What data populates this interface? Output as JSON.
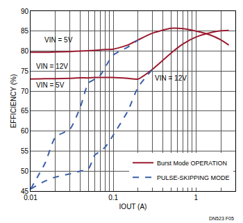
{
  "chart_data": {
    "type": "line",
    "x_label": "IOUT (A)",
    "y_label": "EFFICIENCY (%)",
    "log": "x",
    "grid": true,
    "legend": "lower right",
    "xlim": [
      0.01,
      3
    ],
    "xticks": [
      0.01,
      0.1,
      1
    ],
    "ylim": [
      45,
      90
    ],
    "yticks": [
      45,
      50,
      55,
      60,
      65,
      70,
      75,
      80,
      85,
      90
    ],
    "x": [
      0.01,
      0.015,
      0.02,
      0.03,
      0.04,
      0.05,
      0.06,
      0.07,
      0.08,
      0.1,
      0.15,
      0.2,
      0.3,
      0.5,
      0.7,
      1,
      1.5,
      2,
      2.5
    ],
    "series": [
      {
        "name": "Burst Mode OPERATION",
        "color": "#9b1b30",
        "line_style": "solid",
        "values": [
          79.7,
          79.7,
          79.8,
          79.9,
          80,
          80.1,
          80.2,
          80.3,
          80.4,
          80.5,
          81.5,
          82.8,
          84.5,
          85.7,
          85.6,
          85,
          84,
          82.8,
          81.5
        ]
      },
      {
        "name": "Burst Mode OPERATION",
        "color": "#9b1b30",
        "line_style": "solid",
        "values": [
          73,
          73.1,
          73.1,
          73.2,
          73.3,
          73.3,
          73.4,
          73.4,
          73.4,
          73.4,
          73.2,
          73,
          75.5,
          79.5,
          81.8,
          83.5,
          84.6,
          85.1,
          85.2
        ]
      },
      {
        "name": "PULSE-SKIPPING MODE",
        "color": "#3a5fa8",
        "line_style": "dash",
        "values": [
          45.5,
          52,
          58.5,
          60.5,
          66,
          72,
          73,
          74,
          76,
          79,
          81,
          82.8,
          null,
          null,
          null,
          null,
          null,
          null,
          null
        ]
      },
      {
        "name": "PULSE-SKIPPING MODE",
        "color": "#3a5fa8",
        "line_style": "dash",
        "values": [
          45.5,
          47.5,
          48.5,
          49.3,
          50,
          50.5,
          54,
          55,
          56,
          59,
          65,
          71,
          75.5,
          null,
          null,
          null,
          null,
          null,
          null
        ]
      }
    ],
    "annotations": [
      "VIN = 5V",
      "VIN = 12V",
      "VIN = 5V",
      "VIN = 12V",
      "DN523 F05"
    ]
  }
}
